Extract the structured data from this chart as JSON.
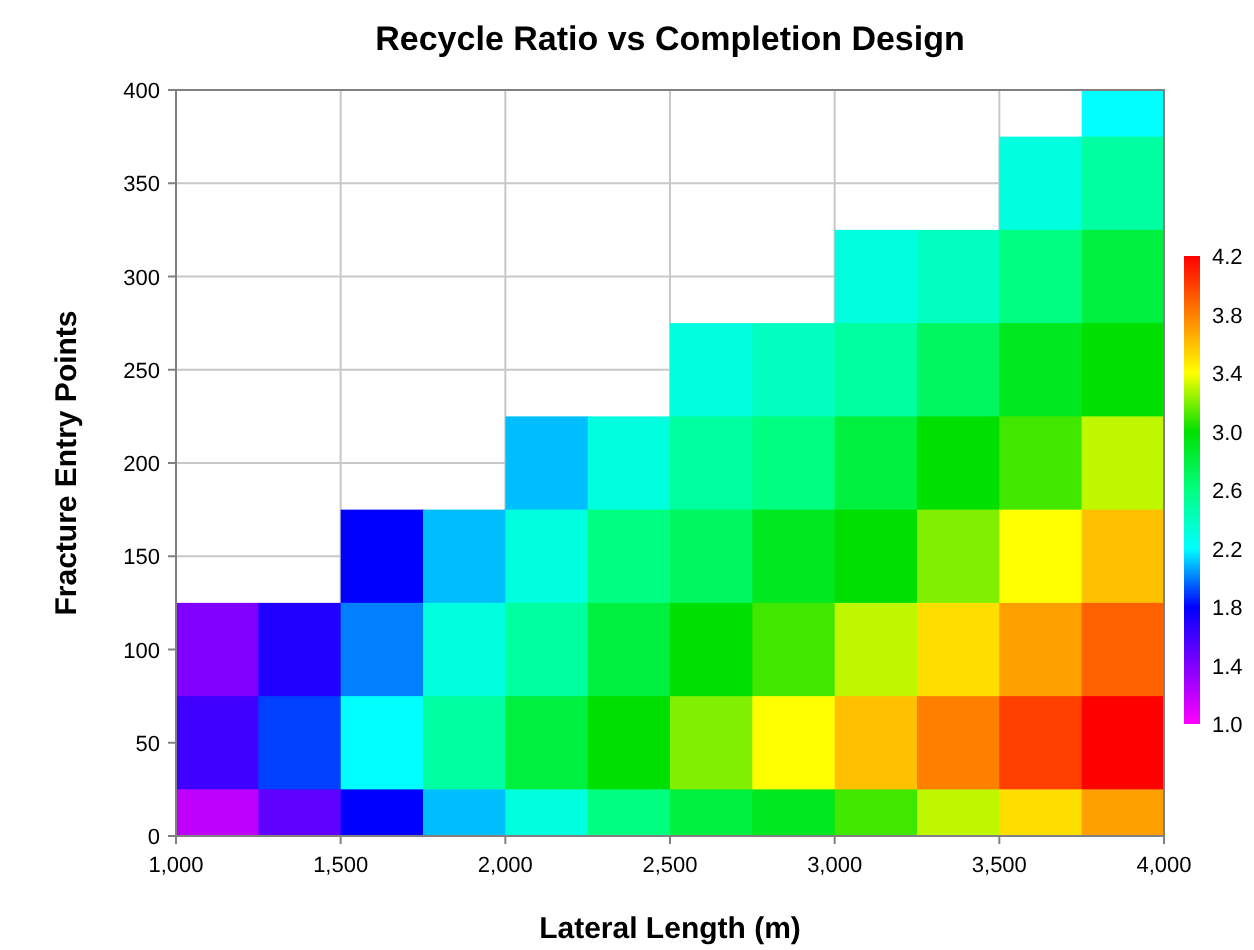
{
  "chart_data": {
    "type": "heatmap",
    "title": "Recycle Ratio vs Completion Design",
    "xlabel": "Lateral Length (m)",
    "ylabel": "Fracture Entry Points",
    "x": [
      1125,
      1375,
      1625,
      1875,
      2125,
      2375,
      2625,
      2875,
      3125,
      3375,
      3625,
      3875
    ],
    "y_categories": [
      "400",
      "350",
      "300",
      "250",
      "200",
      "150",
      "100",
      "50",
      "0"
    ],
    "cells": [
      [
        null,
        null,
        null,
        null,
        null,
        null,
        null,
        null,
        null,
        null,
        null,
        2.2
      ],
      [
        null,
        null,
        null,
        null,
        null,
        null,
        null,
        null,
        null,
        null,
        2.3,
        2.5
      ],
      [
        null,
        null,
        null,
        null,
        null,
        null,
        null,
        null,
        2.3,
        2.4,
        2.6,
        2.8
      ],
      [
        null,
        null,
        null,
        null,
        null,
        null,
        2.3,
        2.4,
        2.5,
        2.7,
        2.9,
        3.0
      ],
      [
        null,
        null,
        null,
        null,
        2.1,
        2.3,
        2.5,
        2.6,
        2.8,
        3.0,
        3.1,
        3.3
      ],
      [
        null,
        null,
        1.8,
        2.1,
        2.3,
        2.6,
        2.7,
        2.9,
        3.0,
        3.2,
        3.4,
        3.6
      ],
      [
        1.4,
        1.7,
        2.0,
        2.3,
        2.5,
        2.8,
        3.0,
        3.1,
        3.3,
        3.5,
        3.7,
        3.9
      ],
      [
        1.6,
        1.9,
        2.2,
        2.5,
        2.8,
        3.0,
        3.2,
        3.4,
        3.6,
        3.8,
        4.0,
        4.2
      ],
      [
        1.2,
        1.5,
        1.8,
        2.1,
        2.3,
        2.6,
        2.8,
        2.9,
        3.1,
        3.3,
        3.5,
        3.7
      ]
    ],
    "xlim": [
      1000,
      4000
    ],
    "xticks": [
      {
        "value": 1000,
        "label": "1,000"
      },
      {
        "value": 1500,
        "label": "1,500"
      },
      {
        "value": 2000,
        "label": "2,000"
      },
      {
        "value": 2500,
        "label": "2,500"
      },
      {
        "value": 3000,
        "label": "3,000"
      },
      {
        "value": 3500,
        "label": "3,500"
      },
      {
        "value": 4000,
        "label": "4,000"
      }
    ],
    "clim": [
      1.0,
      4.2
    ],
    "cticks": [
      {
        "value": 1.0,
        "label": "1.0"
      },
      {
        "value": 1.4,
        "label": "1.4"
      },
      {
        "value": 1.8,
        "label": "1.8"
      },
      {
        "value": 2.2,
        "label": "2.2"
      },
      {
        "value": 2.6,
        "label": "2.6"
      },
      {
        "value": 3.0,
        "label": "3.0"
      },
      {
        "value": 3.4,
        "label": "3.4"
      },
      {
        "value": 3.8,
        "label": "3.8"
      },
      {
        "value": 4.2,
        "label": "4.2"
      }
    ],
    "grid": true
  }
}
